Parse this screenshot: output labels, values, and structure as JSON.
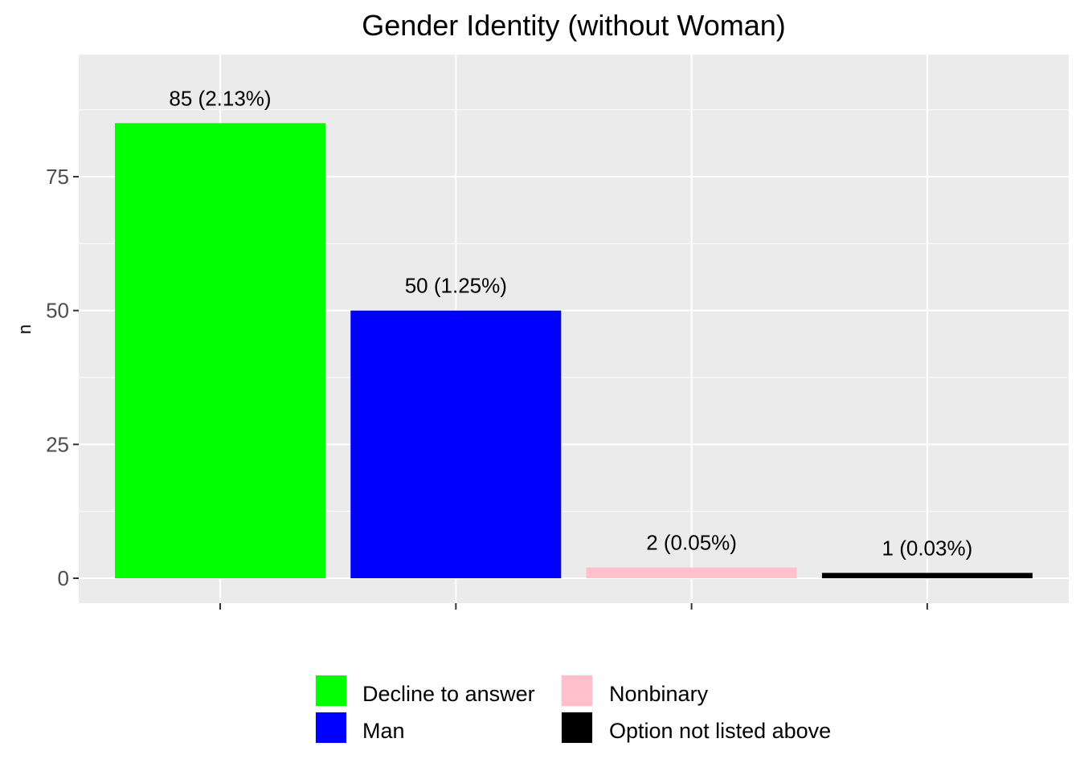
{
  "chart_data": {
    "type": "bar",
    "title": "Gender Identity (without Woman)",
    "xlabel": "",
    "ylabel": "n",
    "ylim": [
      0,
      95
    ],
    "yticks": [
      0,
      25,
      50,
      75
    ],
    "grid": true,
    "legend_position": "bottom",
    "categories": [
      "Decline to answer",
      "Man",
      "Nonbinary",
      "Option not listed above"
    ],
    "values": [
      85,
      50,
      2,
      1
    ],
    "data_labels": [
      "85 (2.13%)",
      "50 (1.25%)",
      "2 (0.05%)",
      "1 (0.03%)"
    ],
    "colors": [
      "#00ff00",
      "#0000ff",
      "#ffc0cb",
      "#000000"
    ]
  }
}
